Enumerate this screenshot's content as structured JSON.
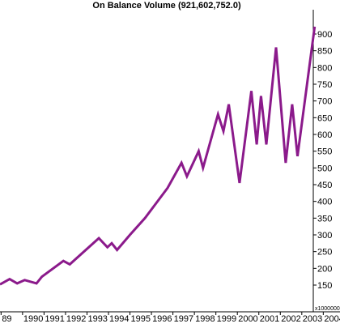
{
  "chart_data": {
    "type": "line",
    "title": "On Balance Volume (921,602,752.0)",
    "right_axis": {
      "ticks": [
        150,
        200,
        250,
        300,
        350,
        400,
        450,
        500,
        550,
        600,
        650,
        700,
        750,
        800,
        850,
        900
      ],
      "unit_label": "x1000000",
      "ylim": [
        100,
        940
      ]
    },
    "x_axis": {
      "tick_labels": [
        "89",
        "1990",
        "1991",
        "1992",
        "1993",
        "1994",
        "1995",
        "1996",
        "1997",
        "1998",
        "1999",
        "2000",
        "2001",
        "2002",
        "2003",
        "2004"
      ],
      "tick_years": [
        1989,
        1990,
        1991,
        1992,
        1993,
        1994,
        1995,
        1996,
        1997,
        1998,
        1999,
        2000,
        2001,
        2002,
        2003,
        2004
      ],
      "xlim": [
        1988.95,
        2004.1
      ]
    },
    "grid": false,
    "colors": {
      "line": "#8b1a8b",
      "axis": "#000000",
      "background": "#ffffff"
    },
    "series": [
      {
        "x": [
          1988.95,
          1989.4,
          1989.75,
          1990.1,
          1990.65,
          1990.9,
          1991.9,
          1992.2,
          1993.55,
          1993.95,
          1994.15,
          1994.4,
          1995.0,
          1995.7,
          1996.75,
          1997.4,
          1997.65,
          1998.2,
          1998.4,
          1999.1,
          1999.35,
          1999.6,
          2000.1,
          2000.65,
          2000.9,
          2001.1,
          2001.35,
          2001.8,
          2002.25,
          2002.55,
          2002.8,
          2003.6
        ],
        "y": [
          152,
          168,
          155,
          165,
          155,
          175,
          222,
          212,
          290,
          263,
          275,
          255,
          300,
          350,
          440,
          515,
          475,
          550,
          500,
          660,
          610,
          690,
          455,
          730,
          570,
          715,
          570,
          860,
          515,
          690,
          535,
          922
        ]
      }
    ]
  }
}
